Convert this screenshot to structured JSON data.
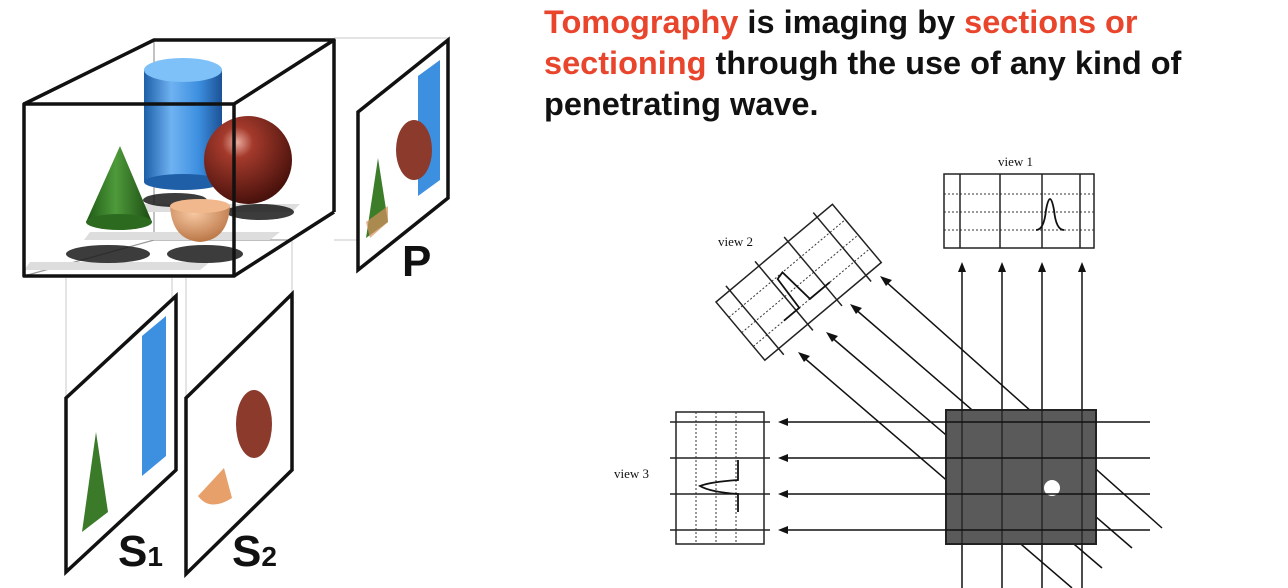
{
  "heading": {
    "w1": "Tomography",
    "w2": " is imaging by ",
    "w3": "sections or sectioning",
    "w4": " through the use of any kind of penetrating wave."
  },
  "left_diagram": {
    "label_p": "P",
    "label_s1_letter": "S",
    "label_s1_sub": "1",
    "label_s2_letter": "S",
    "label_s2_sub": "2"
  },
  "right_diagram": {
    "view1": "view 1",
    "view2": "view 2",
    "view3": "view 3"
  },
  "colors": {
    "accent": "#e8452c",
    "cylinder": "#3d8fe0",
    "sphere": "#8b2c22",
    "cone": "#2f7a22",
    "hemisphere": "#e8a06a",
    "object_fill": "#5a5a5a"
  }
}
